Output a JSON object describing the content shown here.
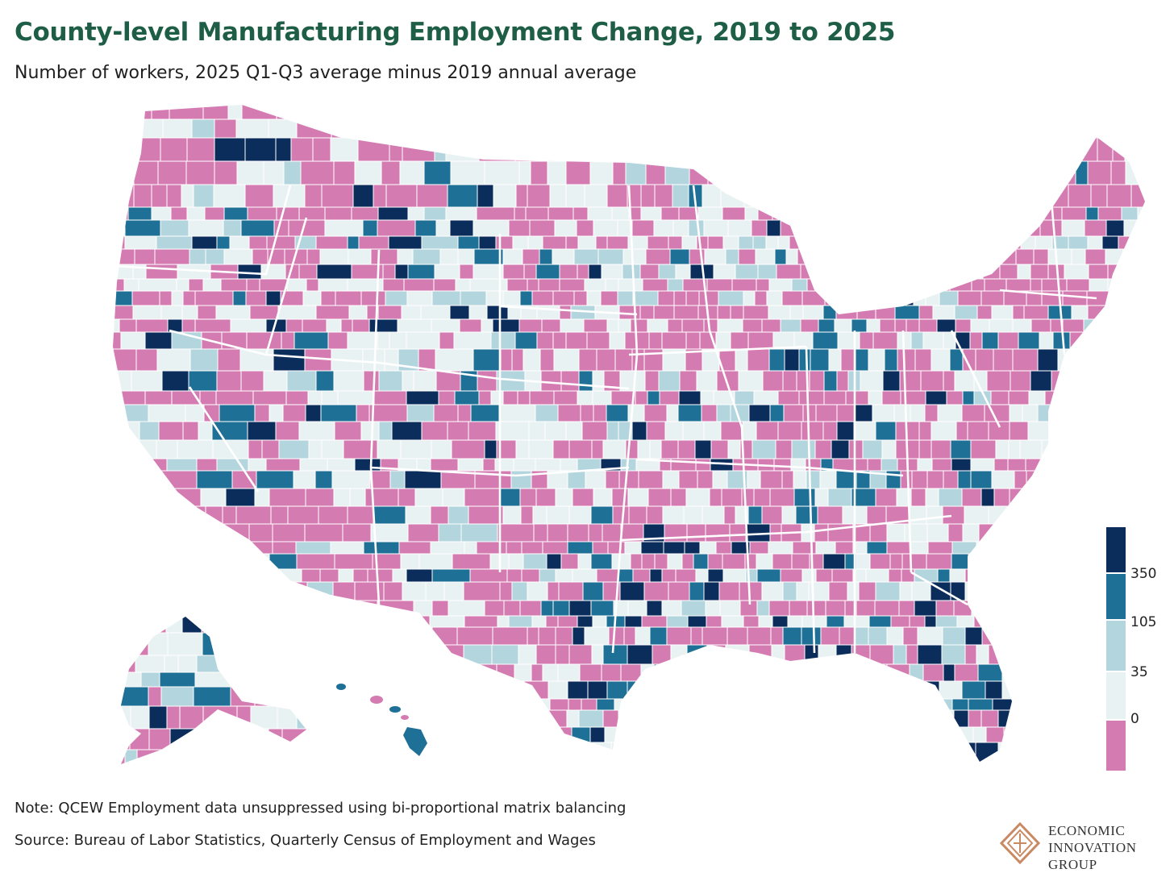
{
  "header": {
    "title": "County-level Manufacturing Employment Change, 2019 to 2025",
    "subtitle": "Number of workers, 2025 Q1-Q3 average minus 2019 annual average"
  },
  "legend": {
    "labels": [
      "350",
      "105",
      "35",
      "0"
    ],
    "bins": [
      {
        "name": "decline",
        "color": "#d47bb2"
      },
      {
        "name": "0-35",
        "color": "#e9f2f2"
      },
      {
        "name": "35-105",
        "color": "#b3d5de"
      },
      {
        "name": "105-350",
        "color": "#1f7096"
      },
      {
        "name": "350+",
        "color": "#0b2d5c"
      }
    ]
  },
  "colors": {
    "decline": "#d47bb2",
    "low": "#e9f2f2",
    "mid": "#b3d5de",
    "high": "#1f7096",
    "top": "#0b2d5c",
    "border": "#ffffff",
    "title": "#1e5e47",
    "logo_mark": "#c98a63"
  },
  "footer": {
    "note": "Note: QCEW Employment data unsuppressed using bi-proportional matrix balancing",
    "source": "Source: Bureau of Labor Statistics, Quarterly Census of Employment and Wages"
  },
  "logo": {
    "lines": [
      "ECONOMIC",
      "INNOVATION",
      "GROUP"
    ]
  }
}
